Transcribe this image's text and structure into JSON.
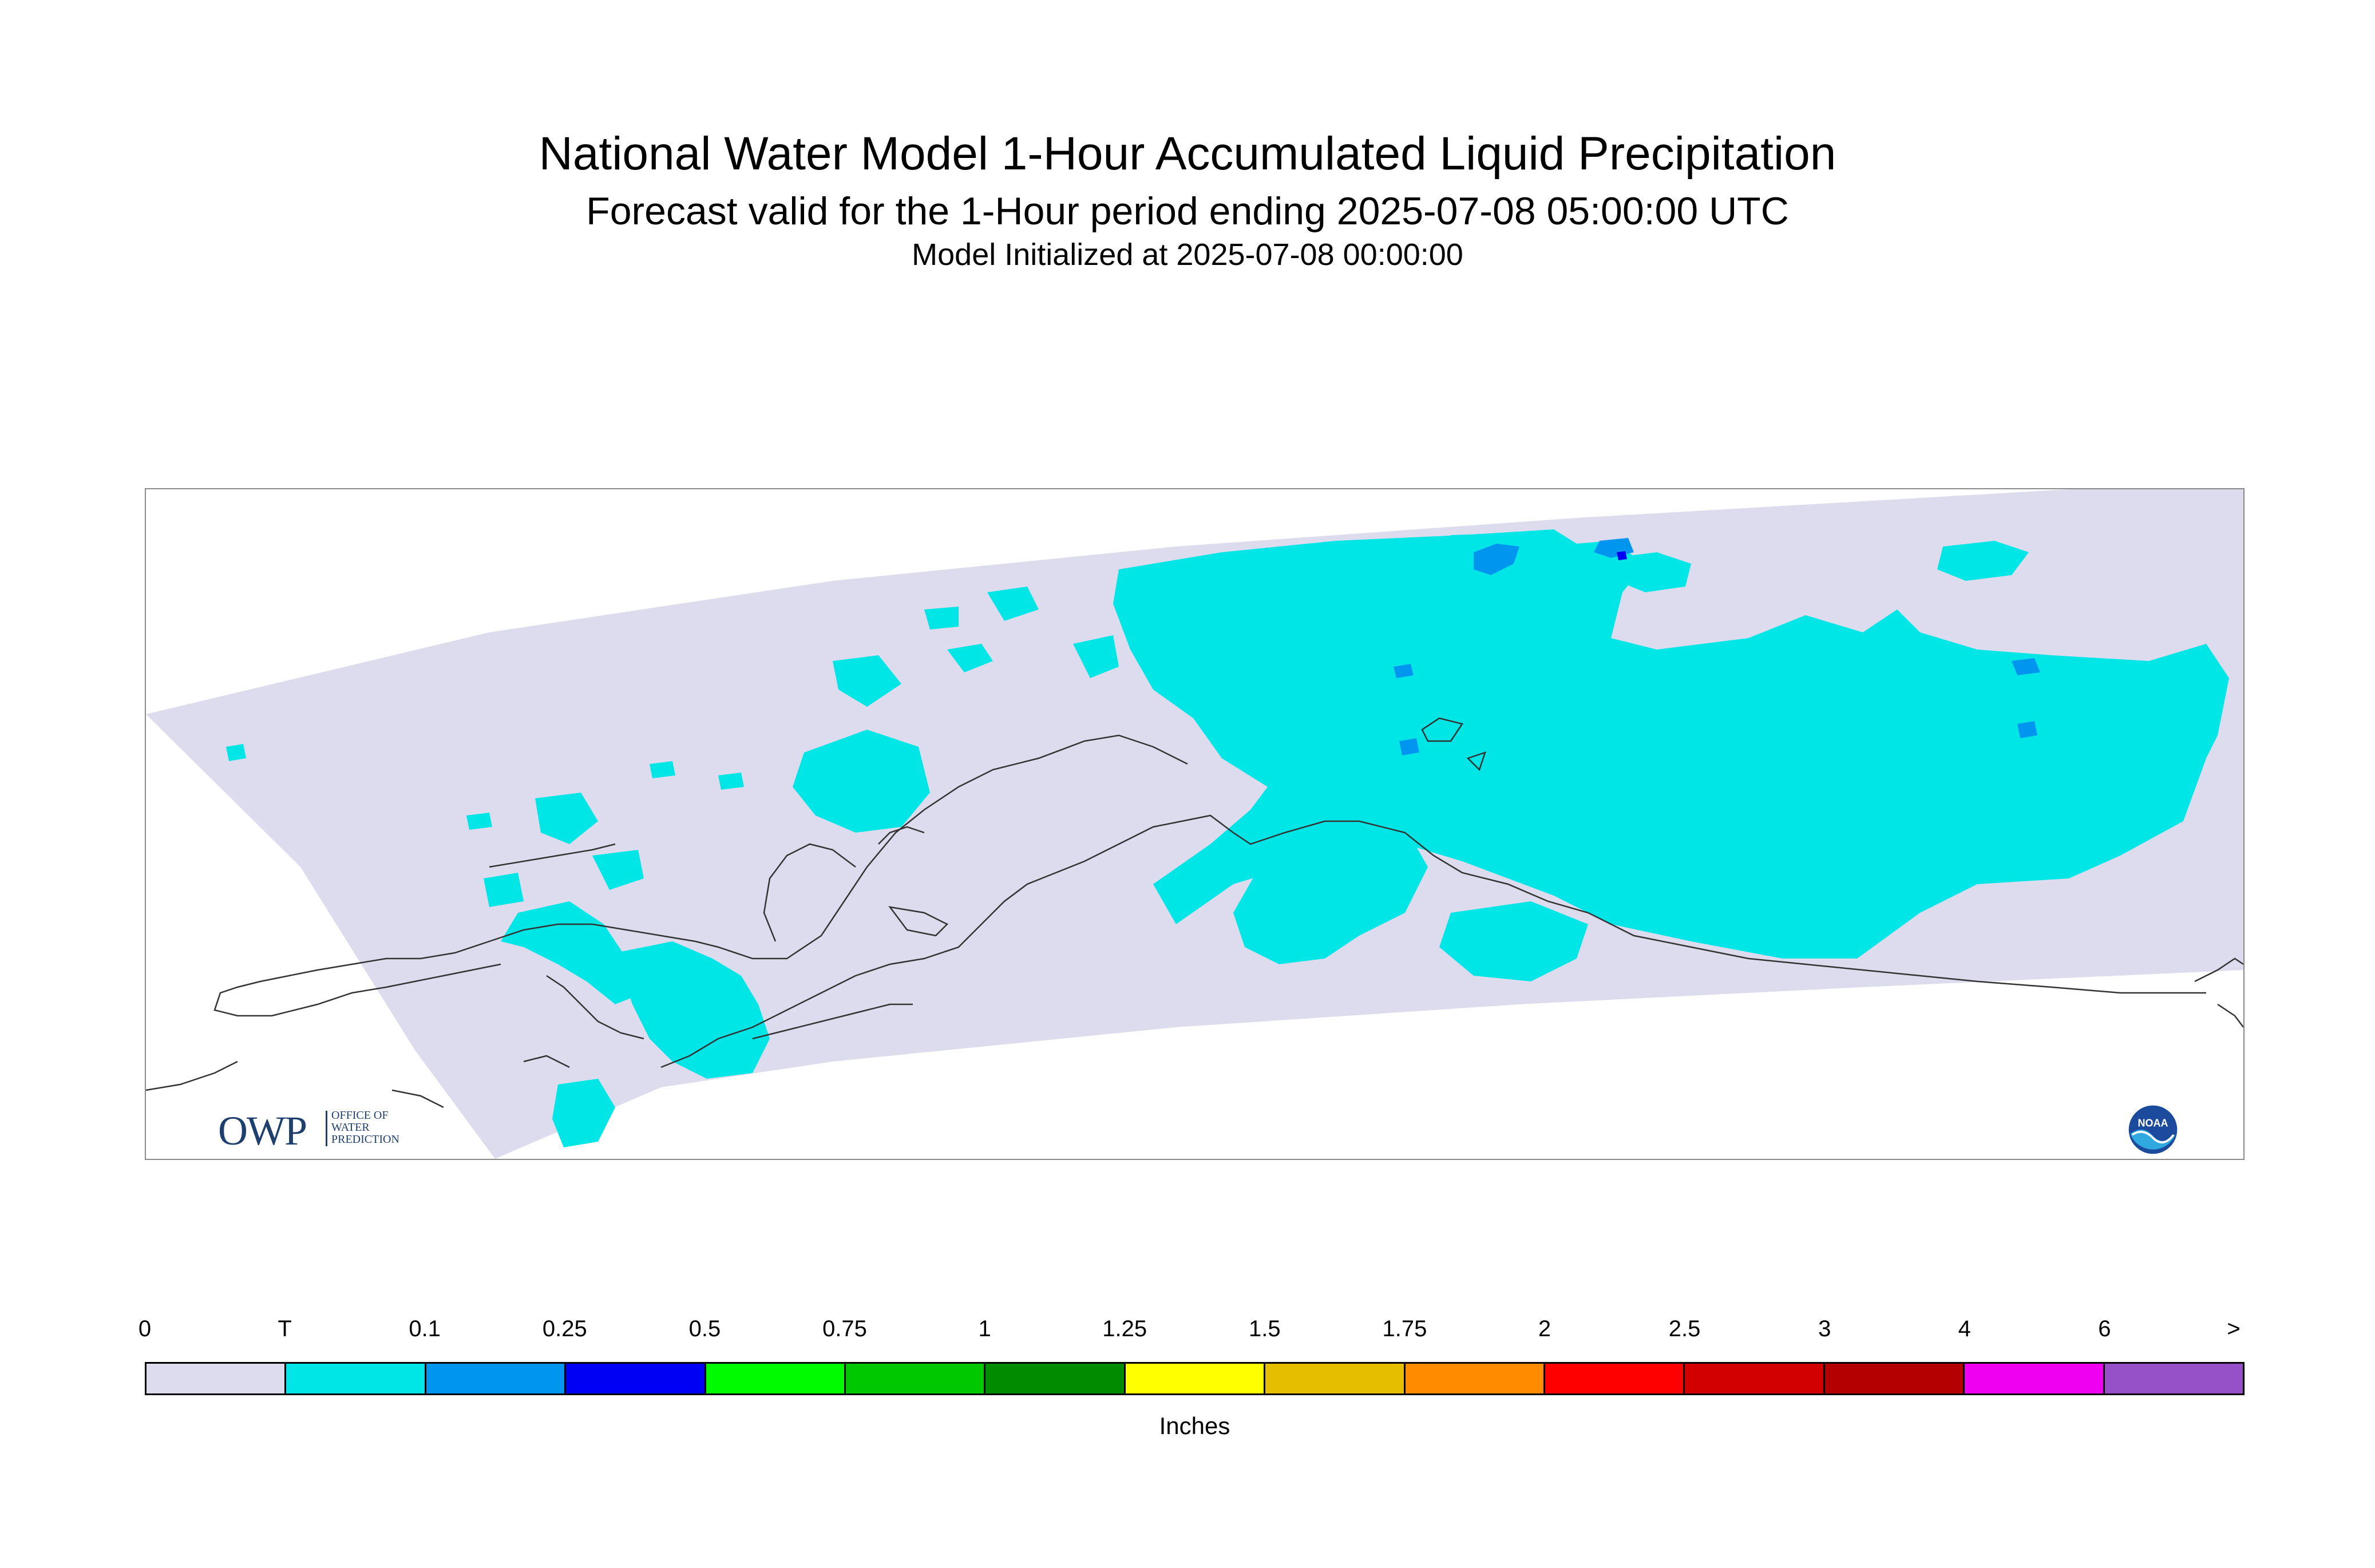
{
  "title": "National Water Model 1-Hour Accumulated Liquid Precipitation",
  "subtitle": "Forecast valid for the 1-Hour period ending 2025-07-08 05:00:00 UTC",
  "init_line": "Model Initialized at 2025-07-08 00:00:00",
  "logos": {
    "owp_letters": "OWP",
    "owp_text": "OFFICE OF\nWATER\nPREDICTION",
    "noaa_text": "NOAA"
  },
  "legend": {
    "unit": "Inches",
    "labels": [
      "0",
      "T",
      "0.1",
      "0.25",
      "0.5",
      "0.75",
      "1",
      "1.25",
      "1.5",
      "1.75",
      "2",
      "2.5",
      "3",
      "4",
      "6",
      ">"
    ],
    "colors": [
      "#dcdcee",
      "#00e5e5",
      "#0096f0",
      "#0000f5",
      "#00fa00",
      "#00c800",
      "#008c00",
      "#ffff00",
      "#e6be00",
      "#ff8c00",
      "#ff0000",
      "#d20000",
      "#b40000",
      "#f000f0",
      "#9650c8"
    ]
  },
  "map_colors": {
    "background_region": "#dcdcee",
    "trace": "#00e5e5",
    "light": "#0096f0",
    "moderate": "#0000f5",
    "coastline": "#333333"
  }
}
